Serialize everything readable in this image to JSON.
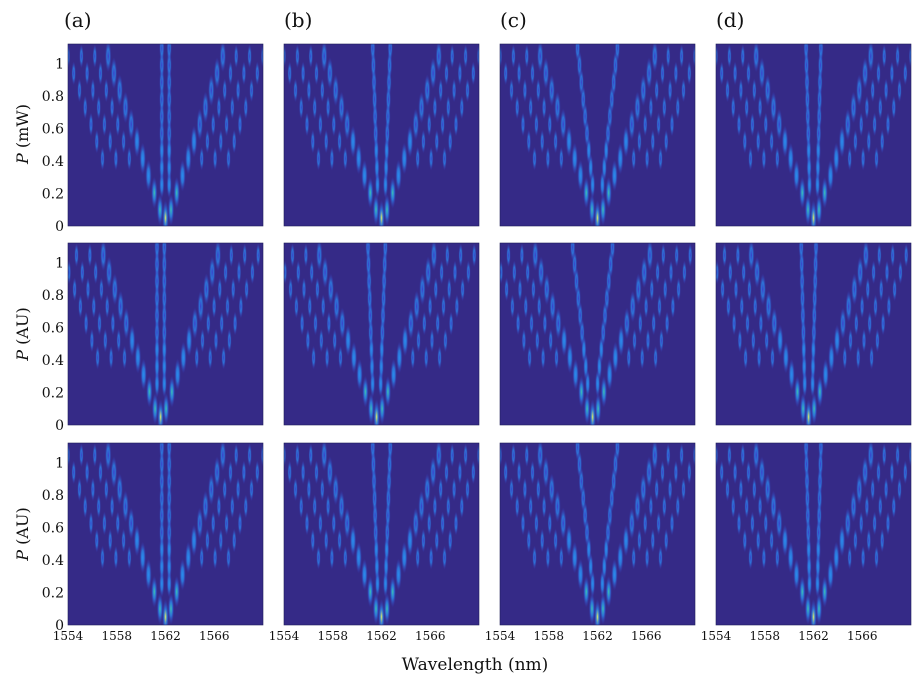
{
  "figure": {
    "panel_labels": [
      "(a)",
      "(b)",
      "(c)",
      "(d)"
    ],
    "xlabel": "Wavelength (nm)",
    "row_ylabels": [
      {
        "var": "P",
        "unit": " (mW)"
      },
      {
        "var": "P",
        "unit": " (AU)"
      },
      {
        "var": "P",
        "unit": " (AU)"
      }
    ]
  },
  "colors": {
    "background": "#352a87",
    "low": "#3a3cc8",
    "mid": "#2a8cf0",
    "high": "#3cc6b0",
    "peak": "#e8f060"
  },
  "chart_data": {
    "type": "heatmap",
    "rows": 3,
    "cols": 4,
    "x_ticks": [
      1554,
      1558,
      1562,
      1566
    ],
    "y_ticks": [
      0,
      0.2,
      0.4,
      0.6,
      0.8,
      1
    ],
    "y_tick_labels": [
      "0",
      "0.2",
      "0.4",
      "0.6",
      "0.8",
      "1"
    ],
    "xlim": [
      1554,
      1570
    ],
    "ylim": [
      0,
      1.12
    ],
    "center_wavelength": 1562,
    "v_spread_half_width_at_P1": 4.5,
    "panels": [
      {
        "row": 0,
        "col": 0,
        "center_shift": 0.0,
        "lobes": 10,
        "split": 1.0
      },
      {
        "row": 0,
        "col": 1,
        "center_shift": 0.0,
        "lobes": 10,
        "split": 0.8
      },
      {
        "row": 0,
        "col": 2,
        "center_shift": 0.0,
        "lobes": 10,
        "split": 0.35
      },
      {
        "row": 0,
        "col": 3,
        "center_shift": 0.0,
        "lobes": 10,
        "split": 0.85
      },
      {
        "row": 1,
        "col": 0,
        "center_shift": -0.4,
        "lobes": 10,
        "split": 1.0
      },
      {
        "row": 1,
        "col": 1,
        "center_shift": -0.4,
        "lobes": 10,
        "split": 0.8
      },
      {
        "row": 1,
        "col": 2,
        "center_shift": -0.4,
        "lobes": 10,
        "split": 0.35
      },
      {
        "row": 1,
        "col": 3,
        "center_shift": -0.4,
        "lobes": 10,
        "split": 0.85
      },
      {
        "row": 2,
        "col": 0,
        "center_shift": 0.0,
        "lobes": 10,
        "split": 1.0
      },
      {
        "row": 2,
        "col": 1,
        "center_shift": 0.0,
        "lobes": 10,
        "split": 0.8
      },
      {
        "row": 2,
        "col": 2,
        "center_shift": 0.0,
        "lobes": 10,
        "split": 0.35
      },
      {
        "row": 2,
        "col": 3,
        "center_shift": 0.0,
        "lobes": 10,
        "split": 0.85
      }
    ]
  }
}
